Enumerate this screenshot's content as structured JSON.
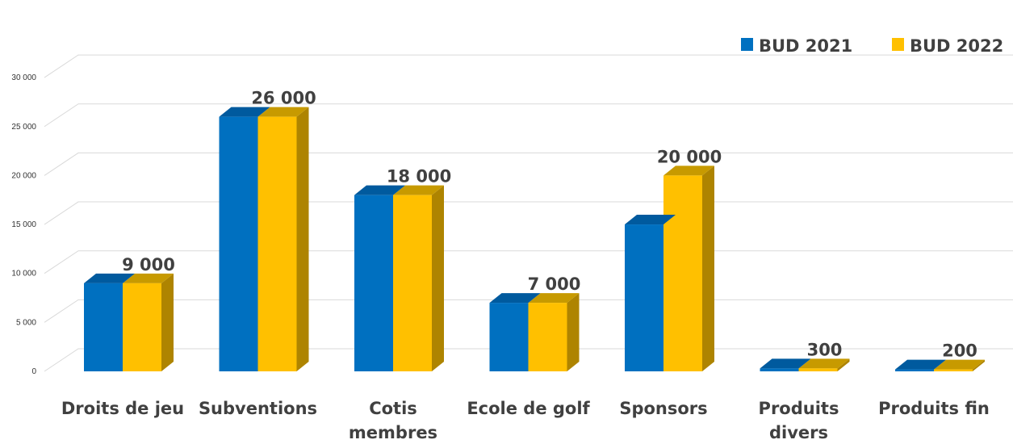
{
  "chart_data": {
    "type": "bar",
    "categories": [
      [
        "Droits de jeu"
      ],
      [
        "Subventions"
      ],
      [
        "Cotis",
        "membres"
      ],
      [
        "Ecole de golf"
      ],
      [
        "Sponsors"
      ],
      [
        "Produits",
        "divers"
      ],
      [
        "Produits fin"
      ]
    ],
    "series": [
      {
        "name": "BUD 2021",
        "values": [
          9000,
          26000,
          18000,
          7000,
          15000,
          300,
          200
        ],
        "color": "#0070C0",
        "top_color": "#005A9E"
      },
      {
        "name": "BUD 2022",
        "values": [
          9000,
          26000,
          18000,
          7000,
          20000,
          300,
          200
        ],
        "color": "#FFC000",
        "top_color": "#C79A00",
        "side_color": "#AE8400"
      }
    ],
    "data_labels": [
      "9 000",
      "26 000",
      "18 000",
      "7 000",
      "20 000",
      "300",
      "200"
    ],
    "y_ticks": [
      "0",
      "5 000",
      "10 000",
      "15 000",
      "20 000",
      "25 000",
      "30 000"
    ],
    "ylim": [
      0,
      30000
    ],
    "grid": true,
    "legend_position": "top-right",
    "title": "",
    "xlabel": "",
    "ylabel": ""
  }
}
